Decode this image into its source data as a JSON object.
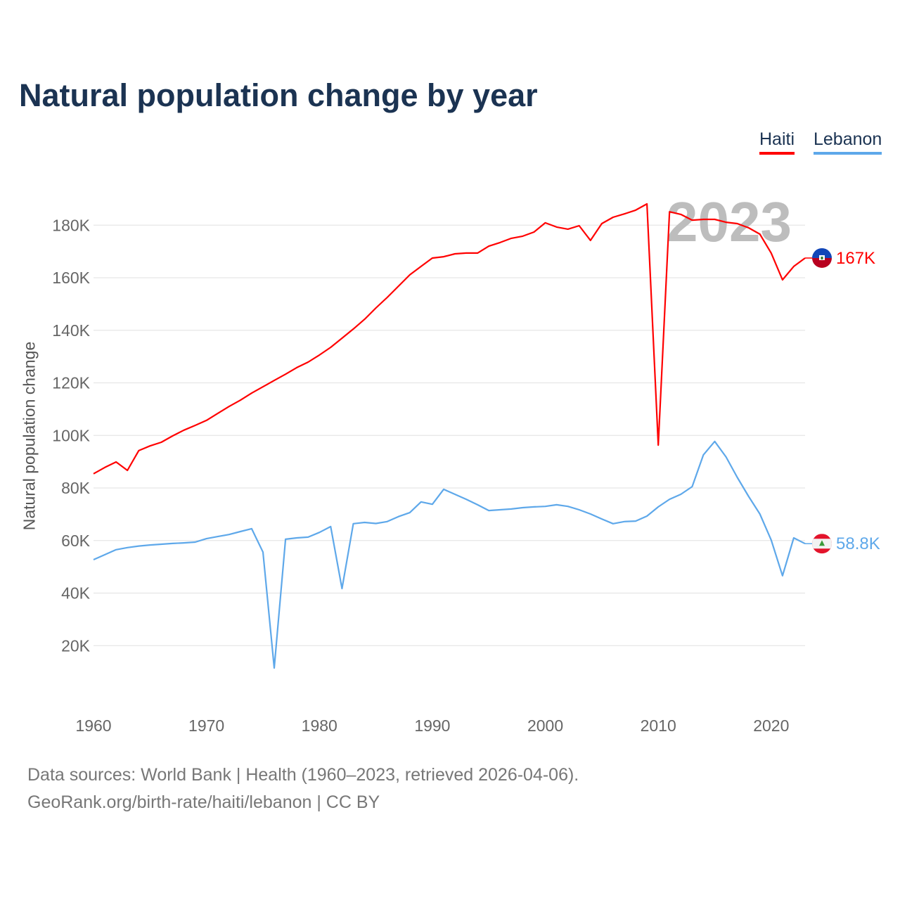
{
  "chart_data": {
    "type": "line",
    "title": "Natural population change by year",
    "xlabel": "",
    "ylabel": "Natural population change",
    "xlim": [
      1960,
      2023
    ],
    "ylim": [
      0,
      195000
    ],
    "grid": true,
    "legend_placement": "top-right",
    "x_ticks": [
      1960,
      1970,
      1980,
      1990,
      2000,
      2010,
      2020
    ],
    "x_tick_labels": [
      "1960",
      "1970",
      "1980",
      "1990",
      "2000",
      "2010",
      "2020"
    ],
    "y_ticks": [
      20000,
      40000,
      60000,
      80000,
      100000,
      120000,
      140000,
      160000,
      180000
    ],
    "y_tick_labels": [
      "20K",
      "40K",
      "60K",
      "80K",
      "100K",
      "120K",
      "140K",
      "160K",
      "180K"
    ],
    "year_watermark": "2023",
    "x": [
      1960,
      1961,
      1962,
      1963,
      1964,
      1965,
      1966,
      1967,
      1968,
      1969,
      1970,
      1971,
      1972,
      1973,
      1974,
      1975,
      1976,
      1977,
      1978,
      1979,
      1980,
      1981,
      1982,
      1983,
      1984,
      1985,
      1986,
      1987,
      1988,
      1989,
      1990,
      1991,
      1992,
      1993,
      1994,
      1995,
      1996,
      1997,
      1998,
      1999,
      2000,
      2001,
      2002,
      2003,
      2004,
      2005,
      2006,
      2007,
      2008,
      2009,
      2010,
      2011,
      2012,
      2013,
      2014,
      2015,
      2016,
      2017,
      2018,
      2019,
      2020,
      2021,
      2022,
      2023
    ],
    "series": [
      {
        "name": "Haiti",
        "color": "#ff0000",
        "end_label": "167K",
        "flag": "haiti-flag",
        "values": [
          85400,
          87800,
          89900,
          86700,
          94200,
          96000,
          97400,
          99800,
          102000,
          103800,
          105700,
          108400,
          111000,
          113400,
          116100,
          118500,
          120900,
          123300,
          125800,
          127900,
          130600,
          133500,
          137000,
          140500,
          144200,
          148500,
          152500,
          156800,
          161100,
          164300,
          167500,
          168000,
          169100,
          169400,
          169400,
          172000,
          173400,
          175000,
          175800,
          177400,
          180900,
          179300,
          178500,
          179800,
          174200,
          180600,
          183000,
          184300,
          185700,
          188100,
          96300,
          185100,
          184100,
          181900,
          182200,
          182200,
          181100,
          180600,
          179000,
          176600,
          169400,
          159200,
          164300,
          167500
        ]
      },
      {
        "name": "Lebanon",
        "color": "#5ea8ea",
        "end_label": "58.8K",
        "flag": "lebanon-flag",
        "values": [
          52700,
          54600,
          56500,
          57300,
          57900,
          58300,
          58600,
          58900,
          59100,
          59400,
          60700,
          61500,
          62300,
          63400,
          64500,
          55600,
          11500,
          60500,
          61000,
          61300,
          63100,
          65300,
          41700,
          66400,
          66900,
          66500,
          67200,
          69100,
          70600,
          74700,
          73800,
          79500,
          77600,
          75700,
          73600,
          71400,
          71700,
          72000,
          72500,
          72800,
          73000,
          73600,
          73000,
          71700,
          70100,
          68200,
          66400,
          67200,
          67400,
          69300,
          72800,
          75700,
          77600,
          80500,
          92600,
          97700,
          91800,
          84000,
          76800,
          70100,
          60200,
          46600,
          61000,
          58800
        ]
      }
    ]
  },
  "source": {
    "line1": "Data sources: World Bank | Health (1960–2023, retrieved 2026-04-06).",
    "line2": "GeoRank.org/birth-rate/haiti/lebanon | CC BY"
  }
}
